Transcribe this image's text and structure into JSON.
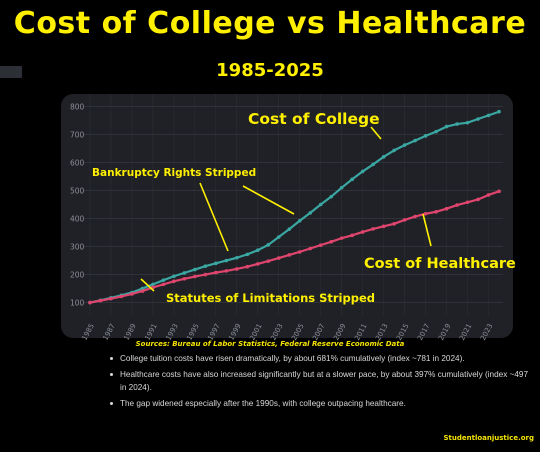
{
  "header": {
    "title": "Cost of College vs Healthcare",
    "subtitle": "1985-2025"
  },
  "sources": "Sources: Bureau of Labor Statistics, Federal Reserve Economic Data",
  "bullets": [
    "College tuition costs have risen dramatically, by about 681% cumulatively (index ~781 in 2024).",
    "Healthcare costs have also increased significantly but at a slower pace, by about 397% cumulatively (index ~497 in 2024).",
    "The gap widened especially after the 1990s, with college outpacing healthcare."
  ],
  "footer": "Studentloanjustice.org",
  "colors": {
    "title": "#FFF000",
    "college": "#3AA7A3",
    "healthcare": "#E0456E",
    "annotation": "#FFF000",
    "panel": "#1f2126"
  },
  "chart_data": {
    "type": "line",
    "x": [
      1985,
      1986,
      1987,
      1988,
      1989,
      1990,
      1991,
      1992,
      1993,
      1994,
      1995,
      1996,
      1997,
      1998,
      1999,
      2000,
      2001,
      2002,
      2003,
      2004,
      2005,
      2006,
      2007,
      2008,
      2009,
      2010,
      2011,
      2012,
      2013,
      2014,
      2015,
      2016,
      2017,
      2018,
      2019,
      2020,
      2021,
      2022,
      2023,
      2024
    ],
    "x_tick_labels": [
      "1985",
      "1987",
      "1989",
      "1991",
      "1993",
      "1995",
      "1997",
      "1999",
      "2001",
      "2003",
      "2005",
      "2007",
      "2009",
      "2011",
      "2013",
      "2015",
      "2017",
      "2019",
      "2021",
      "2023"
    ],
    "y_ticks": [
      "100",
      "200",
      "300",
      "400",
      "500",
      "600",
      "700",
      "800"
    ],
    "ylim": [
      70,
      830
    ],
    "grid": true,
    "series": [
      {
        "name": "Cost of College",
        "values": [
          100,
          108,
          117,
          126,
          136,
          150,
          165,
          180,
          194,
          206,
          218,
          230,
          240,
          250,
          260,
          272,
          287,
          306,
          334,
          362,
          392,
          420,
          450,
          478,
          510,
          540,
          568,
          593,
          620,
          643,
          662,
          678,
          695,
          710,
          728,
          737,
          742,
          755,
          768,
          781
        ]
      },
      {
        "name": "Cost of Healthcare",
        "values": [
          100,
          107,
          114,
          122,
          131,
          141,
          154,
          165,
          176,
          185,
          193,
          200,
          207,
          213,
          220,
          228,
          238,
          248,
          259,
          270,
          281,
          293,
          305,
          317,
          330,
          340,
          352,
          363,
          372,
          381,
          395,
          407,
          417,
          424,
          435,
          448,
          458,
          468,
          484,
          497
        ]
      }
    ],
    "annotations": [
      "Cost of College",
      "Cost of Healthcare",
      "Bankruptcy Rights Stripped",
      "Statutes of Limitations Stripped"
    ]
  }
}
